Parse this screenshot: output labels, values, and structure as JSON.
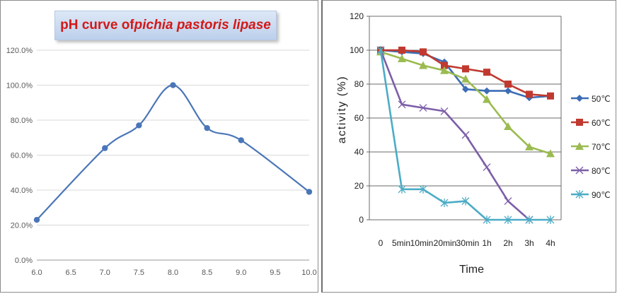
{
  "chart_data": [
    {
      "type": "line",
      "title_prefix": "pH curve of ",
      "title_italic": "pichia pastoris lipase",
      "xlabel": "",
      "ylabel": "",
      "xlim": [
        6.0,
        10.0
      ],
      "ylim": [
        0,
        120
      ],
      "x_ticks": [
        "6.0",
        "6.5",
        "7.0",
        "7.5",
        "8.0",
        "8.5",
        "9.0",
        "9.5",
        "10.0"
      ],
      "y_ticks": [
        "0.0%",
        "20.0%",
        "40.0%",
        "60.0%",
        "80.0%",
        "100.0%",
        "120.0%"
      ],
      "grid": true,
      "color": "#4a76b8",
      "x": [
        6.0,
        7.0,
        7.5,
        8.0,
        8.5,
        9.0,
        10.0
      ],
      "values": [
        23,
        64,
        77,
        100,
        75.5,
        68.5,
        39
      ]
    },
    {
      "type": "line",
      "title": "",
      "xlabel": "Time",
      "ylabel": "activity (%)",
      "ylim": [
        0,
        120
      ],
      "y_ticks": [
        "0",
        "20",
        "40",
        "60",
        "80",
        "100",
        "120"
      ],
      "categories": [
        "0",
        "5min",
        "10min",
        "20min",
        "30min",
        "1h",
        "2h",
        "3h",
        "4h"
      ],
      "grid": true,
      "legend_position": "right",
      "series": [
        {
          "name": "50℃",
          "color": "#3c6db5",
          "marker": "diamond",
          "values": [
            100,
            99,
            98,
            93,
            77,
            76,
            76,
            72,
            73
          ]
        },
        {
          "name": "60℃",
          "color": "#c0392f",
          "marker": "square",
          "values": [
            100,
            100,
            99,
            91,
            89,
            87,
            80,
            74,
            73
          ]
        },
        {
          "name": "70℃",
          "color": "#9bbb50",
          "marker": "triangle",
          "values": [
            99,
            95,
            91,
            88,
            83,
            71,
            55,
            43,
            39
          ]
        },
        {
          "name": "80℃",
          "color": "#7d5ea8",
          "marker": "x",
          "values": [
            100,
            68,
            66,
            64,
            50,
            31,
            11,
            0,
            null
          ]
        },
        {
          "name": "90℃",
          "color": "#4bacc6",
          "marker": "star",
          "values": [
            100,
            18,
            18,
            10,
            11,
            0,
            0,
            0,
            0
          ]
        }
      ]
    }
  ]
}
